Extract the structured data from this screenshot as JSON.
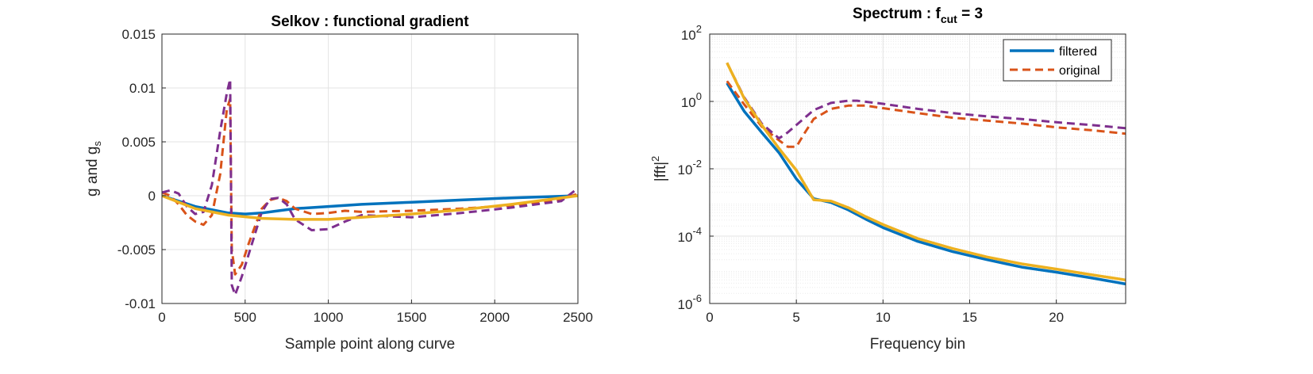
{
  "chart_data": [
    {
      "type": "line",
      "title": "Selkov : functional gradient",
      "xlabel": "Sample point along curve",
      "ylabel": "g and g",
      "ylabel_subscript": "s",
      "xlim": [
        0,
        2500
      ],
      "ylim": [
        -0.01,
        0.015
      ],
      "xticks": [
        0,
        500,
        1000,
        1500,
        2000,
        2500
      ],
      "xtick_labels": [
        "0",
        "500",
        "1000",
        "1500",
        "2000",
        "2500"
      ],
      "yticks": [
        -0.01,
        -0.005,
        0,
        0.005,
        0.01,
        0.015
      ],
      "ytick_labels": [
        "-0.01",
        "-0.005",
        "0",
        "0.005",
        "0.01",
        "0.015"
      ],
      "grid": true,
      "series": [
        {
          "color": "#0072BD",
          "style": "solid",
          "x": [
            0,
            100,
            200,
            300,
            400,
            500,
            600,
            700,
            800,
            1000,
            1200,
            1500,
            1800,
            2100,
            2500
          ],
          "y": [
            0,
            -0.0005,
            -0.001,
            -0.0013,
            -0.0016,
            -0.0017,
            -0.0016,
            -0.0014,
            -0.0012,
            -0.001,
            -0.0008,
            -0.0006,
            -0.0004,
            -0.0002,
            0
          ]
        },
        {
          "color": "#D95319",
          "style": "dashed",
          "x": [
            0,
            50,
            100,
            150,
            200,
            250,
            300,
            350,
            390,
            410,
            420,
            440,
            480,
            520,
            560,
            600,
            650,
            700,
            750,
            800,
            900,
            1000,
            1100,
            1200,
            1500,
            1800,
            2100,
            2400,
            2500
          ],
          "y": [
            0.0003,
            0,
            -0.0008,
            -0.0018,
            -0.0024,
            -0.0027,
            -0.0018,
            0.002,
            0.008,
            0.009,
            -0.005,
            -0.0073,
            -0.0064,
            -0.0045,
            -0.0028,
            -0.0012,
            -0.0004,
            -0.0002,
            -0.0005,
            -0.0012,
            -0.0017,
            -0.0016,
            -0.0014,
            -0.0015,
            -0.0014,
            -0.0012,
            -0.0009,
            -0.0004,
            0.0002
          ]
        },
        {
          "color": "#7E2F8E",
          "style": "dashed",
          "x": [
            0,
            50,
            100,
            150,
            200,
            250,
            300,
            350,
            390,
            410,
            420,
            440,
            480,
            520,
            560,
            600,
            650,
            700,
            750,
            800,
            900,
            1000,
            1100,
            1200,
            1500,
            1800,
            2100,
            2400,
            2500
          ],
          "y": [
            0.0003,
            0.0005,
            0.0002,
            -0.001,
            -0.0017,
            -0.0015,
            0.001,
            0.006,
            0.0095,
            0.0108,
            -0.0083,
            -0.0092,
            -0.0075,
            -0.0055,
            -0.0035,
            -0.0015,
            -0.0003,
            -0.0002,
            -0.0008,
            -0.0022,
            -0.0032,
            -0.0031,
            -0.0024,
            -0.0018,
            -0.002,
            -0.0016,
            -0.0011,
            -0.0005,
            0.0007
          ]
        },
        {
          "color": "#EDB120",
          "style": "solid",
          "x": [
            0,
            200,
            400,
            600,
            800,
            1000,
            1200,
            1500,
            1800,
            2100,
            2500
          ],
          "y": [
            0,
            -0.0012,
            -0.0018,
            -0.0021,
            -0.0022,
            -0.0022,
            -0.002,
            -0.0017,
            -0.0013,
            -0.0008,
            0
          ]
        }
      ]
    },
    {
      "type": "line",
      "title": "Spectrum : f",
      "title_subscript": "cut",
      "title_suffix": " = 3",
      "xlabel": "Frequency bin",
      "ylabel": "|fft|",
      "ylabel_superscript": "2",
      "xlim": [
        0,
        24
      ],
      "ylim": [
        1e-06,
        100
      ],
      "yscale": "log",
      "xticks": [
        0,
        5,
        10,
        15,
        20
      ],
      "xtick_labels": [
        "0",
        "5",
        "10",
        "15",
        "20"
      ],
      "yticks": [
        1e-06,
        0.0001,
        0.01,
        1,
        100
      ],
      "ytick_bases": [
        "10",
        "10",
        "10",
        "10",
        "10"
      ],
      "ytick_exponents": [
        "-6",
        "-4",
        "-2",
        "0",
        "2"
      ],
      "grid": true,
      "legend": {
        "location": "top-right",
        "entries": [
          "filtered",
          "original"
        ]
      },
      "series": [
        {
          "name": "filtered",
          "color": "#0072BD",
          "style": "solid",
          "x": [
            1,
            2,
            3,
            4,
            5,
            6,
            7,
            8,
            9,
            10,
            12,
            14,
            16,
            18,
            20,
            22,
            24
          ],
          "y": [
            3.5,
            0.5,
            0.12,
            0.03,
            0.005,
            0.0013,
            0.001,
            0.0006,
            0.00032,
            0.00018,
            7e-05,
            3.5e-05,
            2e-05,
            1.2e-05,
            8.5e-06,
            5.8e-06,
            3.8e-06
          ]
        },
        {
          "name": "original",
          "color": "#D95319",
          "style": "dashed",
          "x": [
            1,
            2,
            3,
            4,
            4.5,
            5,
            5.5,
            6,
            7,
            8,
            9,
            10,
            12,
            14,
            16,
            18,
            20,
            22,
            24
          ],
          "y": [
            4,
            0.8,
            0.18,
            0.07,
            0.045,
            0.045,
            0.12,
            0.3,
            0.6,
            0.75,
            0.75,
            0.63,
            0.45,
            0.33,
            0.27,
            0.22,
            0.17,
            0.14,
            0.11
          ]
        },
        {
          "color": "#7E2F8E",
          "style": "dashed",
          "x": [
            1,
            2,
            3,
            4,
            4.5,
            5,
            6,
            7,
            8,
            8.5,
            9,
            10,
            12,
            14,
            16,
            18,
            20,
            22,
            24
          ],
          "y": [
            14,
            1.3,
            0.22,
            0.08,
            0.12,
            0.2,
            0.55,
            0.9,
            1.05,
            1.05,
            0.98,
            0.85,
            0.6,
            0.45,
            0.36,
            0.3,
            0.24,
            0.2,
            0.16
          ]
        },
        {
          "color": "#EDB120",
          "style": "solid",
          "x": [
            1,
            2,
            3,
            4,
            5,
            6,
            7,
            8,
            9,
            10,
            12,
            14,
            16,
            18,
            20,
            22,
            24
          ],
          "y": [
            14,
            1.2,
            0.2,
            0.04,
            0.009,
            0.0012,
            0.0011,
            0.0007,
            0.00038,
            0.00022,
            8.5e-05,
            4.3e-05,
            2.4e-05,
            1.5e-05,
            1.05e-05,
            7.2e-06,
            5e-06
          ]
        }
      ]
    }
  ]
}
